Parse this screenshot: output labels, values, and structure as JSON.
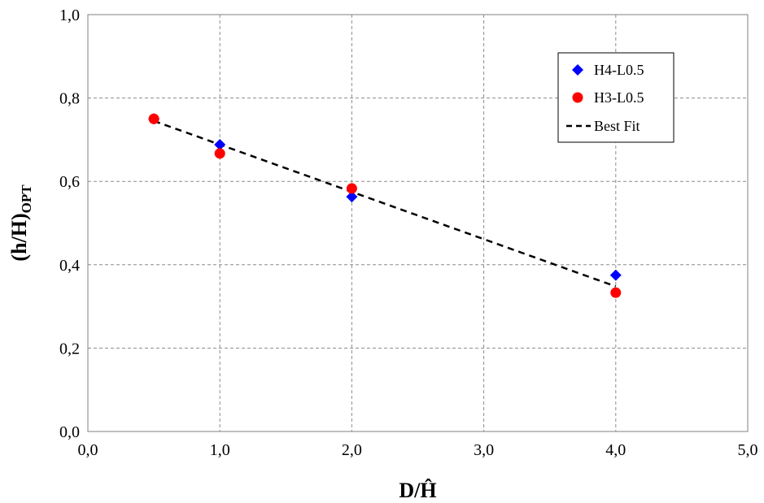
{
  "chart_data": {
    "type": "scatter",
    "xlabel": "D/Ĥ",
    "ylabel_main": "(h/H)",
    "ylabel_sub": "OPT",
    "xlim": [
      0,
      5
    ],
    "ylim": [
      0,
      1
    ],
    "x_ticks": [
      0,
      1,
      2,
      3,
      4,
      5
    ],
    "y_ticks": [
      0,
      0.2,
      0.4,
      0.6,
      0.8,
      1.0
    ],
    "x_tick_labels": [
      "0,0",
      "1,0",
      "2,0",
      "3,0",
      "4,0",
      "5,0"
    ],
    "y_tick_labels": [
      "0,0",
      "0,2",
      "0,4",
      "0,6",
      "0,8",
      "1,0"
    ],
    "grid": true,
    "legend_position": "top-right",
    "series": [
      {
        "name": "H4-L0.5",
        "marker": "diamond",
        "color": "#0000FF",
        "x": [
          0.5,
          1.0,
          2.0,
          4.0
        ],
        "y": [
          0.75,
          0.688,
          0.563,
          0.375
        ]
      },
      {
        "name": "H3-L0.5",
        "marker": "circle",
        "color": "#FF0000",
        "x": [
          0.5,
          1.0,
          2.0,
          4.0
        ],
        "y": [
          0.75,
          0.667,
          0.583,
          0.333
        ]
      }
    ],
    "fit": {
      "name": "Best Fit",
      "style": "dashed",
      "color": "#000000",
      "x": [
        0.5,
        4.0
      ],
      "y": [
        0.745,
        0.348
      ]
    }
  }
}
